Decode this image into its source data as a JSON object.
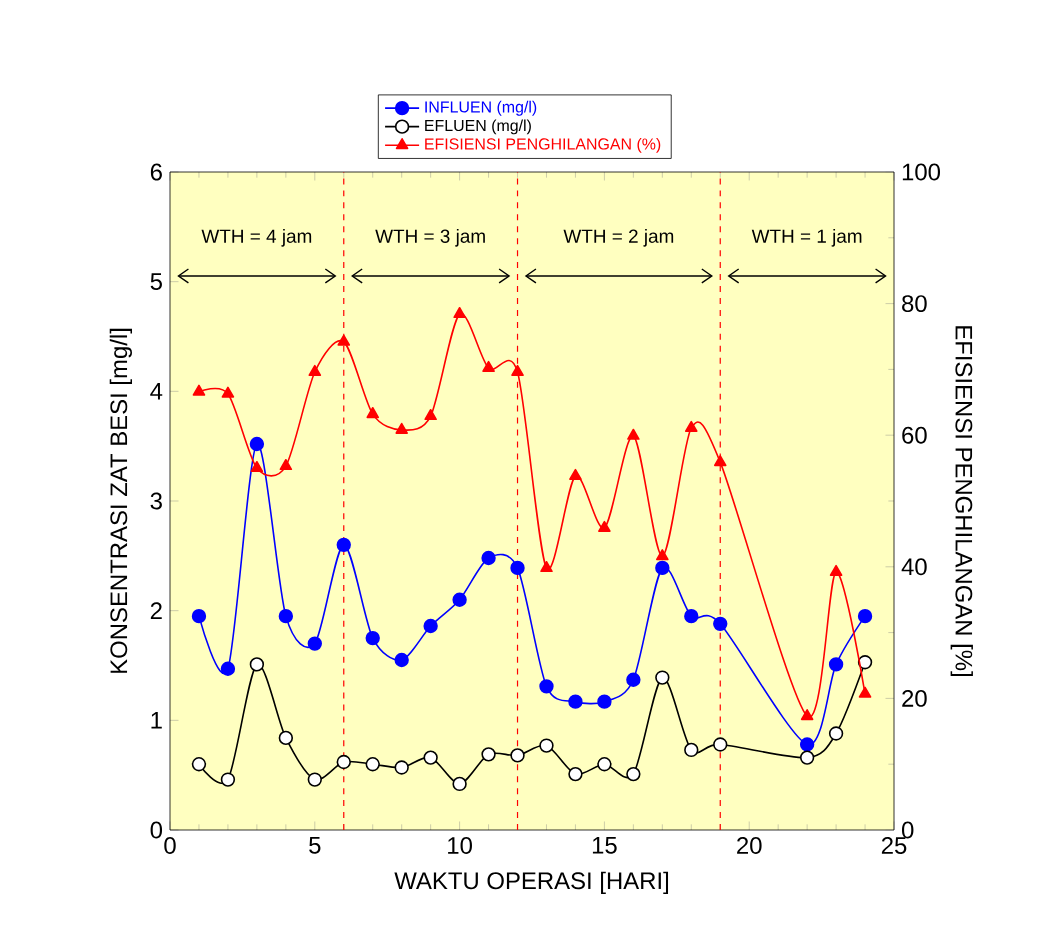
{
  "chart_data": {
    "type": "line",
    "xlabel": "WAKTU OPERASI [HARI]",
    "ylabel": "KONSENTRASI ZAT BESI [mg/l]",
    "y2label": "EFISIENSI PENGHILANGAN [%]",
    "x": [
      1,
      2,
      3,
      4,
      5,
      6,
      7,
      8,
      9,
      10,
      11,
      12,
      13,
      14,
      15,
      16,
      17,
      18,
      19,
      22,
      23,
      24
    ],
    "series": [
      {
        "name": "INFLUEN (mg/l)",
        "color": "#0000ff",
        "marker": "circle",
        "values": [
          1.95,
          1.47,
          3.52,
          1.95,
          1.7,
          2.6,
          1.75,
          1.55,
          1.86,
          2.1,
          2.48,
          2.39,
          1.31,
          1.17,
          1.17,
          1.37,
          2.39,
          1.95,
          1.88,
          0.78,
          1.51,
          1.95
        ]
      },
      {
        "name": "EFLUEN (mg/l)",
        "color": "#000000",
        "marker": "circle",
        "values": [
          0.6,
          0.46,
          1.51,
          0.84,
          0.46,
          0.62,
          0.6,
          0.57,
          0.66,
          0.42,
          0.69,
          0.68,
          0.77,
          0.51,
          0.6,
          0.51,
          1.39,
          0.73,
          0.78,
          0.66,
          0.88,
          1.53
        ]
      },
      {
        "name": "EFISIENSI PENGHILANGAN (%)",
        "color": "#ff0000",
        "marker": "triangle",
        "axis": "y2",
        "values": [
          66.6,
          66.3,
          55,
          55.3,
          69.6,
          74.2,
          63.2,
          60.8,
          62.9,
          78.4,
          70.2,
          69.6,
          39.8,
          53.8,
          45.9,
          59.9,
          41.6,
          61.1,
          55.9,
          17.3,
          39.2,
          20.7
        ]
      }
    ],
    "xlim": [
      0,
      25
    ],
    "xticks": [
      0,
      5,
      10,
      15,
      20,
      25
    ],
    "ylim": [
      0,
      6
    ],
    "yticks": [
      0,
      1,
      2,
      3,
      4,
      5,
      6
    ],
    "y2lim": [
      0,
      100
    ],
    "y2ticks": [
      0,
      20,
      40,
      60,
      80,
      100
    ],
    "ref_lines": [
      {
        "axis": "x",
        "value": 6,
        "color": "#ff0000",
        "line_style": "dashed"
      },
      {
        "axis": "x",
        "value": 12,
        "color": "#ff0000",
        "line_style": "dashed"
      },
      {
        "axis": "x",
        "value": 19,
        "color": "#ff0000",
        "line_style": "dashed"
      }
    ],
    "annotations": [
      "WTH = 4 jam",
      "WTH = 3 jam",
      "WTH = 2 jam",
      "WTH = 1 jam"
    ],
    "legend": "top",
    "grid": false
  }
}
